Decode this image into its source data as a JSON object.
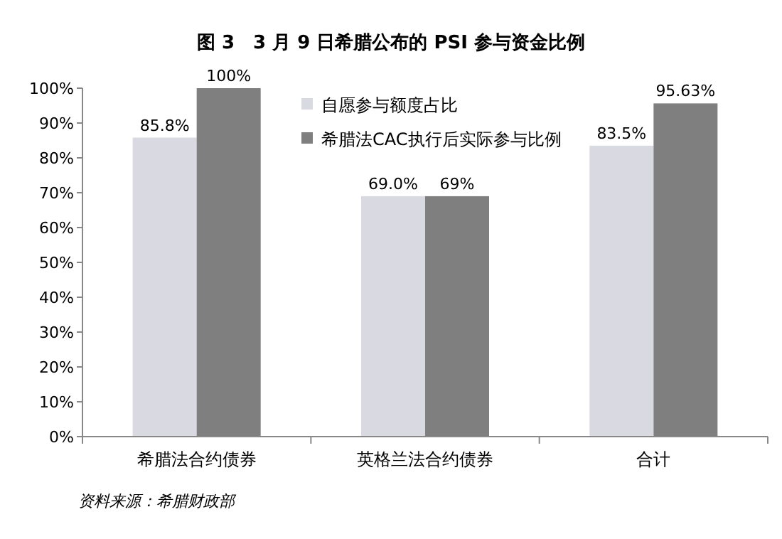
{
  "chart_data": {
    "type": "bar",
    "title": "图 3　3 月 9 日希腊公布的 PSI 参与资金比例",
    "categories": [
      "希腊法合约债券",
      "英格兰法合约债券",
      "合计"
    ],
    "series": [
      {
        "name": "自愿参与额度占比",
        "color": "#d9d9e1",
        "values": [
          85.8,
          69.0,
          83.5
        ],
        "value_labels": [
          "85.8%",
          "69.0%",
          "83.5%"
        ]
      },
      {
        "name": "希腊法CAC执行后实际参与比例",
        "color": "#7f7f7f",
        "values": [
          100,
          69,
          95.63
        ],
        "value_labels": [
          "100%",
          "69%",
          "95.63%"
        ]
      }
    ],
    "ylim": [
      0,
      100
    ],
    "yticks": [
      {
        "value": 0,
        "label": "0%"
      },
      {
        "value": 10,
        "label": "10%"
      },
      {
        "value": 20,
        "label": "20%"
      },
      {
        "value": 30,
        "label": "30%"
      },
      {
        "value": 40,
        "label": "40%"
      },
      {
        "value": 50,
        "label": "50%"
      },
      {
        "value": 60,
        "label": "60%"
      },
      {
        "value": 70,
        "label": "70%"
      },
      {
        "value": 80,
        "label": "80%"
      },
      {
        "value": 90,
        "label": "90%"
      },
      {
        "value": 100,
        "label": "100%"
      }
    ],
    "grid": false,
    "legend": "top",
    "annotations": [
      "资料来源：希腊财政部"
    ]
  }
}
